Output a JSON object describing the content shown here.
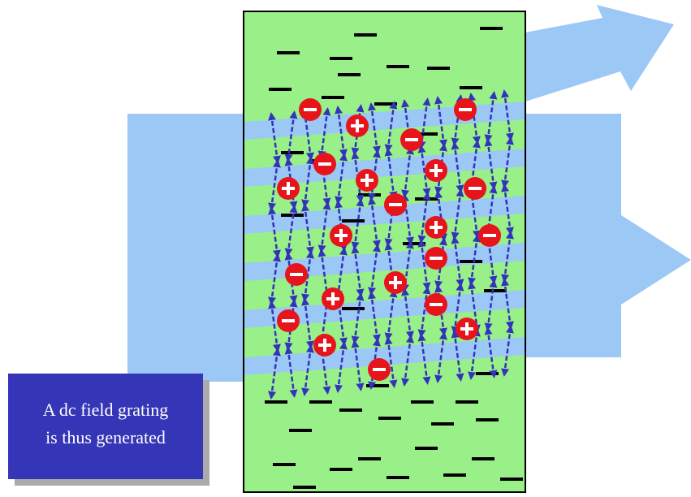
{
  "caption": {
    "lines": [
      "A dc field grating",
      "is thus generated"
    ]
  }
}
